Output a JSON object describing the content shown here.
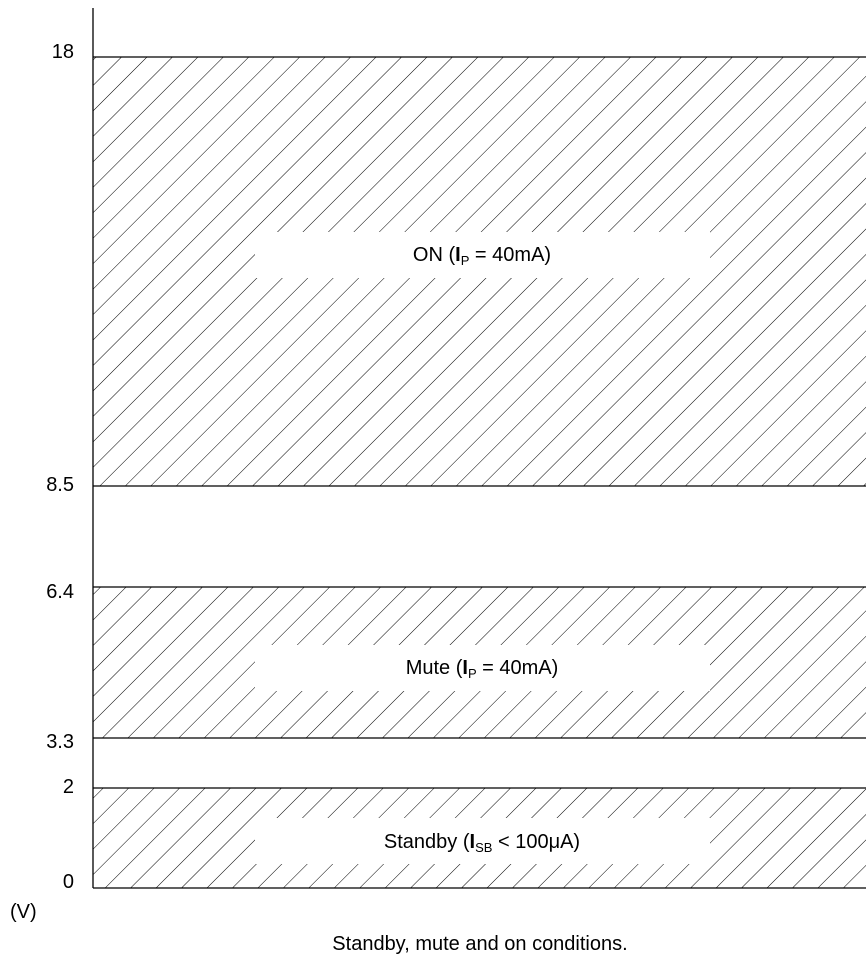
{
  "chart_data": {
    "type": "diagram",
    "unit_label": "(V)",
    "ticks": [
      "0",
      "2",
      "3.3",
      "6.4",
      "8.5",
      "18"
    ],
    "regions": [
      {
        "from": 8.5,
        "to": 18,
        "label_main": "ON (",
        "label_i": "I",
        "label_sub": "P",
        "label_rest": " = 40mA)"
      },
      {
        "from": 3.3,
        "to": 6.4,
        "label_main": "Mute (",
        "label_i": "I",
        "label_sub": "P",
        "label_rest": " = 40mA)"
      },
      {
        "from": 0,
        "to": 2,
        "label_main": "Standby (",
        "label_i": "I",
        "label_sub": "SB",
        "label_rest": " < 100μA)"
      }
    ]
  },
  "caption": "Standby, mute and on conditions."
}
